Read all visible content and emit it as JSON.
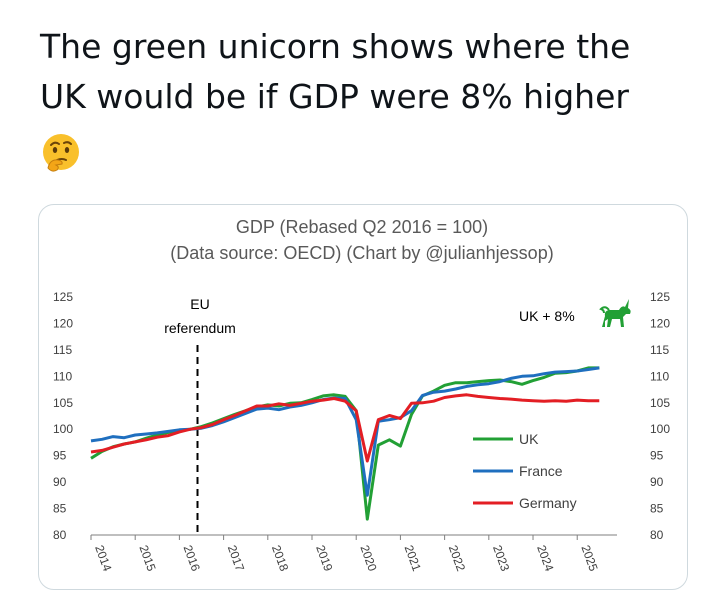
{
  "tweet": {
    "line1": "The green unicorn shows where the",
    "line2": "UK would be if GDP were 8% higher",
    "emoji": "thinking-face"
  },
  "chart_data": {
    "type": "line",
    "title": "GDP (Rebased Q2 2016 = 100)",
    "subtitle": "(Data source: OECD) (Chart by @julianhjessop)",
    "ylim": [
      80,
      125
    ],
    "yticks": [
      80,
      85,
      90,
      95,
      100,
      105,
      110,
      115,
      120,
      125
    ],
    "xlim": [
      2014,
      2025.9
    ],
    "xticks": [
      "2014",
      "2015",
      "2016",
      "2017",
      "2018",
      "2019",
      "2020",
      "2021",
      "2022",
      "2023",
      "2024",
      "2025"
    ],
    "grid": false,
    "legend_position": "lower-right",
    "annotations": {
      "referendum_line1": "EU",
      "referendum_line2": "referendum",
      "referendum_x": 2016.5,
      "unicorn_label": "UK + 8%",
      "unicorn_icon": "unicorn-icon",
      "unicorn_color": "#22a035"
    },
    "series": [
      {
        "name": "UK",
        "color": "#22a035",
        "x": [
          2014.0,
          2014.25,
          2014.5,
          2014.75,
          2015.0,
          2015.25,
          2015.5,
          2015.75,
          2016.0,
          2016.25,
          2016.5,
          2016.75,
          2017.0,
          2017.25,
          2017.5,
          2017.75,
          2018.0,
          2018.25,
          2018.5,
          2018.75,
          2019.0,
          2019.25,
          2019.5,
          2019.75,
          2020.0,
          2020.25,
          2020.5,
          2020.75,
          2021.0,
          2021.25,
          2021.5,
          2021.75,
          2022.0,
          2022.25,
          2022.5,
          2022.75,
          2023.0,
          2023.25,
          2023.5,
          2023.75,
          2024.0,
          2024.25,
          2024.5,
          2024.75,
          2025.0,
          2025.25,
          2025.5
        ],
        "values": [
          94.5,
          95.8,
          96.7,
          97.2,
          97.6,
          98.3,
          98.9,
          99.4,
          99.8,
          100.0,
          100.5,
          101.2,
          102.0,
          102.8,
          103.5,
          104.2,
          104.6,
          104.4,
          104.9,
          105.0,
          105.6,
          106.3,
          106.5,
          106.2,
          103.5,
          83.0,
          97.0,
          98.0,
          96.8,
          102.8,
          106.3,
          107.2,
          108.3,
          108.8,
          108.8,
          109.0,
          109.2,
          109.3,
          109.0,
          108.5,
          109.2,
          109.8,
          110.6,
          110.7,
          111.0,
          111.6,
          111.6
        ]
      },
      {
        "name": "France",
        "color": "#1f6fbf",
        "x": [
          2014.0,
          2014.25,
          2014.5,
          2014.75,
          2015.0,
          2015.25,
          2015.5,
          2015.75,
          2016.0,
          2016.25,
          2016.5,
          2016.75,
          2017.0,
          2017.25,
          2017.5,
          2017.75,
          2018.0,
          2018.25,
          2018.5,
          2018.75,
          2019.0,
          2019.25,
          2019.5,
          2019.75,
          2020.0,
          2020.25,
          2020.5,
          2020.75,
          2021.0,
          2021.25,
          2021.5,
          2021.75,
          2022.0,
          2022.25,
          2022.5,
          2022.75,
          2023.0,
          2023.25,
          2023.5,
          2023.75,
          2024.0,
          2024.25,
          2024.5,
          2024.75,
          2025.0,
          2025.25,
          2025.5
        ],
        "values": [
          97.8,
          98.1,
          98.6,
          98.4,
          98.9,
          99.1,
          99.3,
          99.6,
          99.9,
          100.0,
          100.2,
          100.7,
          101.4,
          102.2,
          103.0,
          103.8,
          104.0,
          103.7,
          104.2,
          104.5,
          105.0,
          105.6,
          105.9,
          105.8,
          101.8,
          87.5,
          101.5,
          101.8,
          102.2,
          103.5,
          106.4,
          107.0,
          107.2,
          107.6,
          108.1,
          108.4,
          108.6,
          109.0,
          109.6,
          110.0,
          110.1,
          110.5,
          110.8,
          110.9,
          111.0,
          111.3,
          111.6
        ]
      },
      {
        "name": "Germany",
        "color": "#e31e24",
        "x": [
          2014.0,
          2014.25,
          2014.5,
          2014.75,
          2015.0,
          2015.25,
          2015.5,
          2015.75,
          2016.0,
          2016.25,
          2016.5,
          2016.75,
          2017.0,
          2017.25,
          2017.5,
          2017.75,
          2018.0,
          2018.25,
          2018.5,
          2018.75,
          2019.0,
          2019.25,
          2019.5,
          2019.75,
          2020.0,
          2020.25,
          2020.5,
          2020.75,
          2021.0,
          2021.25,
          2021.5,
          2021.75,
          2022.0,
          2022.25,
          2022.5,
          2022.75,
          2023.0,
          2023.25,
          2023.5,
          2023.75,
          2024.0,
          2024.25,
          2024.5,
          2024.75,
          2025.0,
          2025.25,
          2025.5
        ],
        "values": [
          95.7,
          96.0,
          96.6,
          97.2,
          97.6,
          98.0,
          98.5,
          98.8,
          99.5,
          100.0,
          100.3,
          100.9,
          101.8,
          102.6,
          103.5,
          104.4,
          104.4,
          104.8,
          104.5,
          104.9,
          105.3,
          105.5,
          105.8,
          105.3,
          103.5,
          94.0,
          101.8,
          102.6,
          102.0,
          104.9,
          105.0,
          105.3,
          106.0,
          106.3,
          106.5,
          106.2,
          106.0,
          105.8,
          105.7,
          105.5,
          105.4,
          105.3,
          105.4,
          105.3,
          105.5,
          105.4,
          105.4
        ]
      }
    ]
  }
}
